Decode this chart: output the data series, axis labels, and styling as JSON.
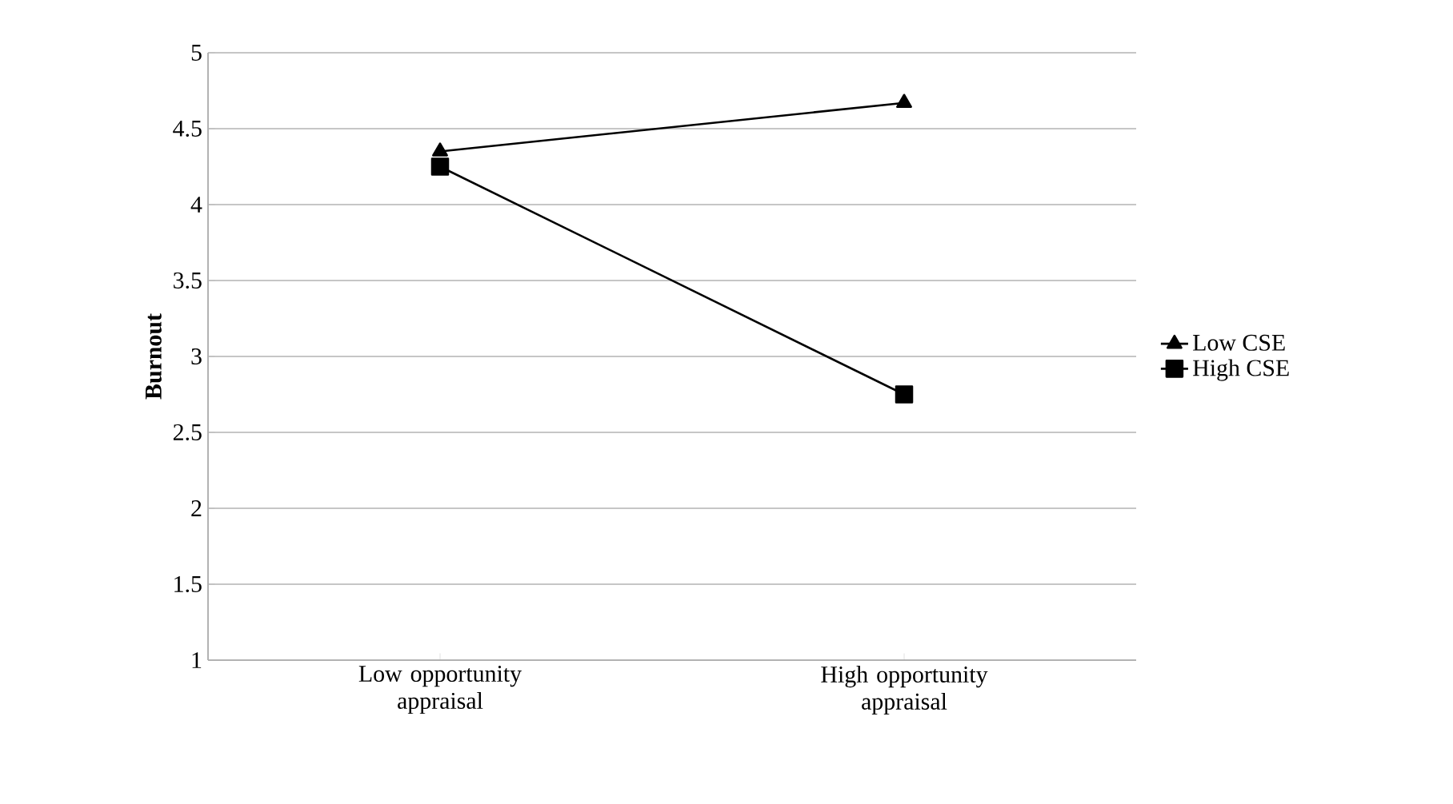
{
  "chart_data": {
    "type": "line",
    "ylabel": "Burnout",
    "categories": [
      "Low opportunity appraisal",
      "High opportunity appraisal"
    ],
    "series": [
      {
        "name": "Low CSE",
        "color": "#000000",
        "marker": "triangle",
        "values": [
          4.35,
          4.67
        ]
      },
      {
        "name": "High CSE",
        "color": "#000000",
        "marker": "square",
        "values": [
          4.25,
          2.75
        ]
      }
    ],
    "ylim": [
      1,
      5
    ],
    "yticks": [
      1,
      1.5,
      2,
      2.5,
      3,
      3.5,
      4,
      4.5,
      5
    ],
    "grid": "y",
    "legend": "right",
    "line_style": "solid"
  }
}
